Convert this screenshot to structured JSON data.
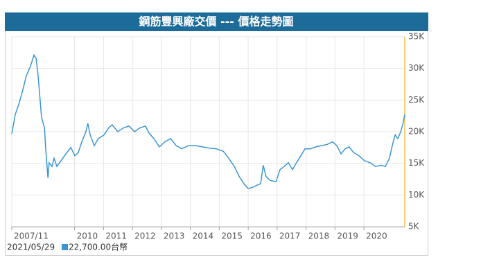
{
  "chart_data": {
    "type": "line",
    "title": "鋼筋豐興廠交價 --- 價格走勢圖",
    "x": [
      2007.83,
      2007.95,
      2008.09,
      2008.21,
      2008.33,
      2008.48,
      2008.6,
      2008.67,
      2008.74,
      2008.86,
      2008.96,
      2009.0,
      2009.08,
      2009.12,
      2009.22,
      2009.29,
      2009.39,
      2009.53,
      2009.7,
      2009.87,
      2010.01,
      2010.13,
      2010.25,
      2010.39,
      2010.46,
      2010.54,
      2010.68,
      2010.82,
      2011.02,
      2011.18,
      2011.3,
      2011.49,
      2011.69,
      2011.88,
      2012.07,
      2012.26,
      2012.45,
      2012.57,
      2012.74,
      2012.93,
      2013.12,
      2013.32,
      2013.51,
      2013.7,
      2013.94,
      2014.18,
      2014.42,
      2014.66,
      2014.9,
      2015.14,
      2015.33,
      2015.52,
      2015.69,
      2015.85,
      2016.0,
      2016.14,
      2016.29,
      2016.43,
      2016.52,
      2016.62,
      2016.76,
      2016.96,
      2017.1,
      2017.24,
      2017.39,
      2017.53,
      2017.67,
      2017.82,
      2017.96,
      2018.15,
      2018.34,
      2018.54,
      2018.73,
      2018.92,
      2019.06,
      2019.21,
      2019.35,
      2019.49,
      2019.64,
      2019.83,
      2020.02,
      2020.21,
      2020.4,
      2020.6,
      2020.74,
      2020.88,
      2020.98,
      2021.08,
      2021.17,
      2021.27,
      2021.34,
      2021.41
    ],
    "series": [
      {
        "name": "鋼筋豐興廠交價",
        "color": "#3a96d3",
        "values": [
          19700,
          22700,
          24600,
          26600,
          28800,
          30400,
          32100,
          31600,
          28800,
          22200,
          20600,
          17300,
          12700,
          15100,
          14500,
          15800,
          14500,
          15400,
          16500,
          17500,
          16200,
          16700,
          18400,
          20000,
          21300,
          19500,
          17800,
          18900,
          19500,
          20600,
          21100,
          20000,
          20600,
          20900,
          20000,
          20600,
          20900,
          19800,
          18900,
          17600,
          18400,
          18900,
          17800,
          17300,
          17800,
          17800,
          17600,
          17400,
          17300,
          16900,
          15800,
          14500,
          12900,
          11800,
          11000,
          11200,
          11500,
          11800,
          14700,
          12900,
          12300,
          12100,
          14000,
          14500,
          15100,
          14000,
          15100,
          16200,
          17300,
          17300,
          17600,
          17800,
          18000,
          18400,
          17800,
          16500,
          17300,
          17600,
          16700,
          16200,
          15400,
          15100,
          14500,
          14700,
          14500,
          15800,
          17800,
          19500,
          18900,
          20000,
          21100,
          22700
        ]
      }
    ],
    "xlim": [
      2007.83,
      2021.41
    ],
    "xticks": [
      {
        "value": 2007.83,
        "label": "2007/11"
      },
      2010,
      2011,
      2012,
      2013,
      2014,
      2015,
      2016,
      2017,
      2018,
      2019,
      2020
    ],
    "ylim": [
      5000,
      35000
    ],
    "yticks": [
      {
        "value": 5000,
        "label": "5K"
      },
      {
        "value": 10000,
        "label": "10K"
      },
      {
        "value": 15000,
        "label": "15K"
      },
      {
        "value": 20000,
        "label": "20K"
      },
      {
        "value": 25000,
        "label": "25K"
      },
      {
        "value": 30000,
        "label": "30K"
      },
      {
        "value": 35000,
        "label": "35K"
      }
    ],
    "grid": true,
    "latest": {
      "date": "2021/05/29",
      "label": "22,700.00台幣"
    }
  }
}
